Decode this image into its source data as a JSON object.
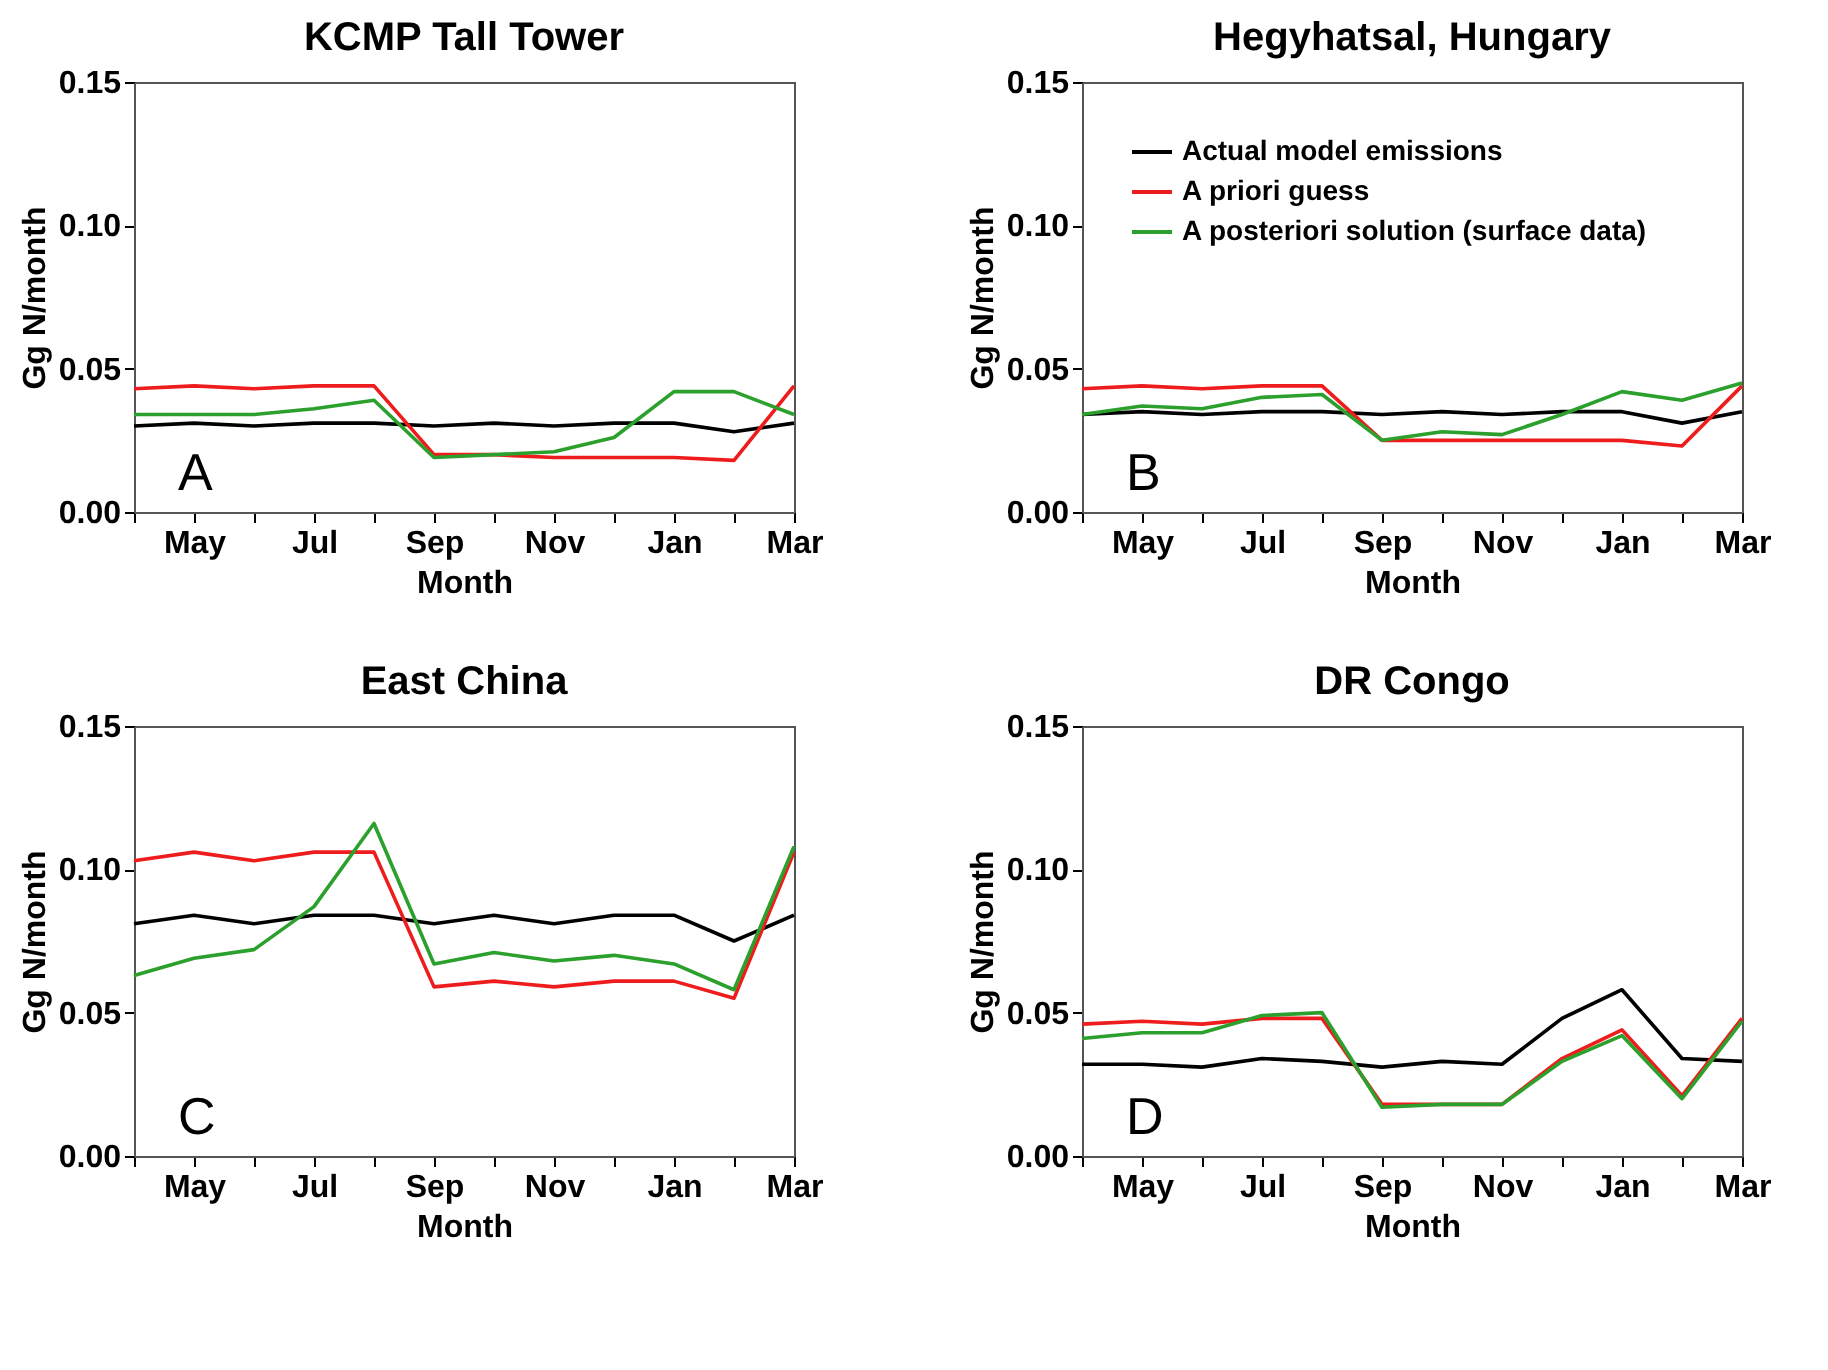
{
  "chart_data": [
    {
      "type": "line",
      "title": "KCMP Tall Tower",
      "xlabel": "Month",
      "ylabel": "Gg N/month",
      "annotations": [
        "A"
      ],
      "categories": [
        null,
        "May",
        null,
        "Jul",
        null,
        "Sep",
        null,
        "Nov",
        null,
        "Jan",
        null,
        "Mar"
      ],
      "ylim": [
        0,
        0.15
      ],
      "yticks": [
        {
          "value": 0,
          "label": "0.00"
        },
        {
          "value": 0.05,
          "label": "0.05"
        },
        {
          "value": 0.1,
          "label": "0.10"
        },
        {
          "value": 0.15,
          "label": "0.15"
        }
      ],
      "grid": false,
      "legend": false,
      "line_style": "solid",
      "marker": "none",
      "series": [
        {
          "color": "#000000",
          "values": [
            0.03,
            0.031,
            0.03,
            0.031,
            0.031,
            0.03,
            0.031,
            0.03,
            0.031,
            0.031,
            0.028,
            0.031
          ]
        },
        {
          "color": "#ee1c1c",
          "values": [
            0.043,
            0.044,
            0.043,
            0.044,
            0.044,
            0.02,
            0.02,
            0.019,
            0.019,
            0.019,
            0.018,
            0.044
          ]
        },
        {
          "color": "#2ca02c",
          "values": [
            0.034,
            0.034,
            0.034,
            0.036,
            0.039,
            0.019,
            0.02,
            0.021,
            0.026,
            0.042,
            0.042,
            0.034
          ]
        }
      ]
    },
    {
      "type": "line",
      "title": "Hegyhatsal, Hungary",
      "xlabel": "Month",
      "ylabel": "Gg N/month",
      "annotations": [
        "B"
      ],
      "categories": [
        null,
        "May",
        null,
        "Jul",
        null,
        "Sep",
        null,
        "Nov",
        null,
        "Jan",
        null,
        "Mar"
      ],
      "ylim": [
        0,
        0.15
      ],
      "yticks": [
        {
          "value": 0,
          "label": "0.00"
        },
        {
          "value": 0.05,
          "label": "0.05"
        },
        {
          "value": 0.1,
          "label": "0.10"
        },
        {
          "value": 0.15,
          "label": "0.15"
        }
      ],
      "grid": false,
      "legend": "top left",
      "line_style": "solid",
      "marker": "none",
      "series": [
        {
          "name": "Actual model emissions",
          "color": "#000000",
          "values": [
            0.034,
            0.035,
            0.034,
            0.035,
            0.035,
            0.034,
            0.035,
            0.034,
            0.035,
            0.035,
            0.031,
            0.035
          ]
        },
        {
          "name": "A priori guess",
          "color": "#ee1c1c",
          "values": [
            0.043,
            0.044,
            0.043,
            0.044,
            0.044,
            0.025,
            0.025,
            0.025,
            0.025,
            0.025,
            0.023,
            0.044
          ]
        },
        {
          "name": "A posteriori solution (surface data)",
          "color": "#2ca02c",
          "values": [
            0.034,
            0.037,
            0.036,
            0.04,
            0.041,
            0.025,
            0.028,
            0.027,
            0.034,
            0.042,
            0.039,
            0.045
          ]
        }
      ]
    },
    {
      "type": "line",
      "title": "East China",
      "xlabel": "Month",
      "ylabel": "Gg N/month",
      "annotations": [
        "C"
      ],
      "categories": [
        null,
        "May",
        null,
        "Jul",
        null,
        "Sep",
        null,
        "Nov",
        null,
        "Jan",
        null,
        "Mar"
      ],
      "ylim": [
        0,
        0.15
      ],
      "yticks": [
        {
          "value": 0,
          "label": "0.00"
        },
        {
          "value": 0.05,
          "label": "0.05"
        },
        {
          "value": 0.1,
          "label": "0.10"
        },
        {
          "value": 0.15,
          "label": "0.15"
        }
      ],
      "grid": false,
      "legend": false,
      "line_style": "solid",
      "marker": "none",
      "series": [
        {
          "color": "#000000",
          "values": [
            0.081,
            0.084,
            0.081,
            0.084,
            0.084,
            0.081,
            0.084,
            0.081,
            0.084,
            0.084,
            0.075,
            0.084
          ]
        },
        {
          "color": "#ee1c1c",
          "values": [
            0.103,
            0.106,
            0.103,
            0.106,
            0.106,
            0.059,
            0.061,
            0.059,
            0.061,
            0.061,
            0.055,
            0.106
          ]
        },
        {
          "color": "#2ca02c",
          "values": [
            0.063,
            0.069,
            0.072,
            0.087,
            0.116,
            0.067,
            0.071,
            0.068,
            0.07,
            0.067,
            0.058,
            0.108
          ]
        }
      ]
    },
    {
      "type": "line",
      "title": "DR Congo",
      "xlabel": "Month",
      "ylabel": "Gg N/month",
      "annotations": [
        "D"
      ],
      "categories": [
        null,
        "May",
        null,
        "Jul",
        null,
        "Sep",
        null,
        "Nov",
        null,
        "Jan",
        null,
        "Mar"
      ],
      "ylim": [
        0,
        0.15
      ],
      "yticks": [
        {
          "value": 0,
          "label": "0.00"
        },
        {
          "value": 0.05,
          "label": "0.05"
        },
        {
          "value": 0.1,
          "label": "0.10"
        },
        {
          "value": 0.15,
          "label": "0.15"
        }
      ],
      "grid": false,
      "legend": false,
      "line_style": "solid",
      "marker": "none",
      "series": [
        {
          "color": "#000000",
          "values": [
            0.032,
            0.032,
            0.031,
            0.034,
            0.033,
            0.031,
            0.033,
            0.032,
            0.048,
            0.058,
            0.034,
            0.033
          ]
        },
        {
          "color": "#ee1c1c",
          "values": [
            0.046,
            0.047,
            0.046,
            0.048,
            0.048,
            0.018,
            0.018,
            0.018,
            0.034,
            0.044,
            0.021,
            0.048
          ]
        },
        {
          "color": "#2ca02c",
          "values": [
            0.041,
            0.043,
            0.043,
            0.049,
            0.05,
            0.017,
            0.018,
            0.018,
            0.033,
            0.042,
            0.02,
            0.047
          ]
        }
      ]
    }
  ]
}
